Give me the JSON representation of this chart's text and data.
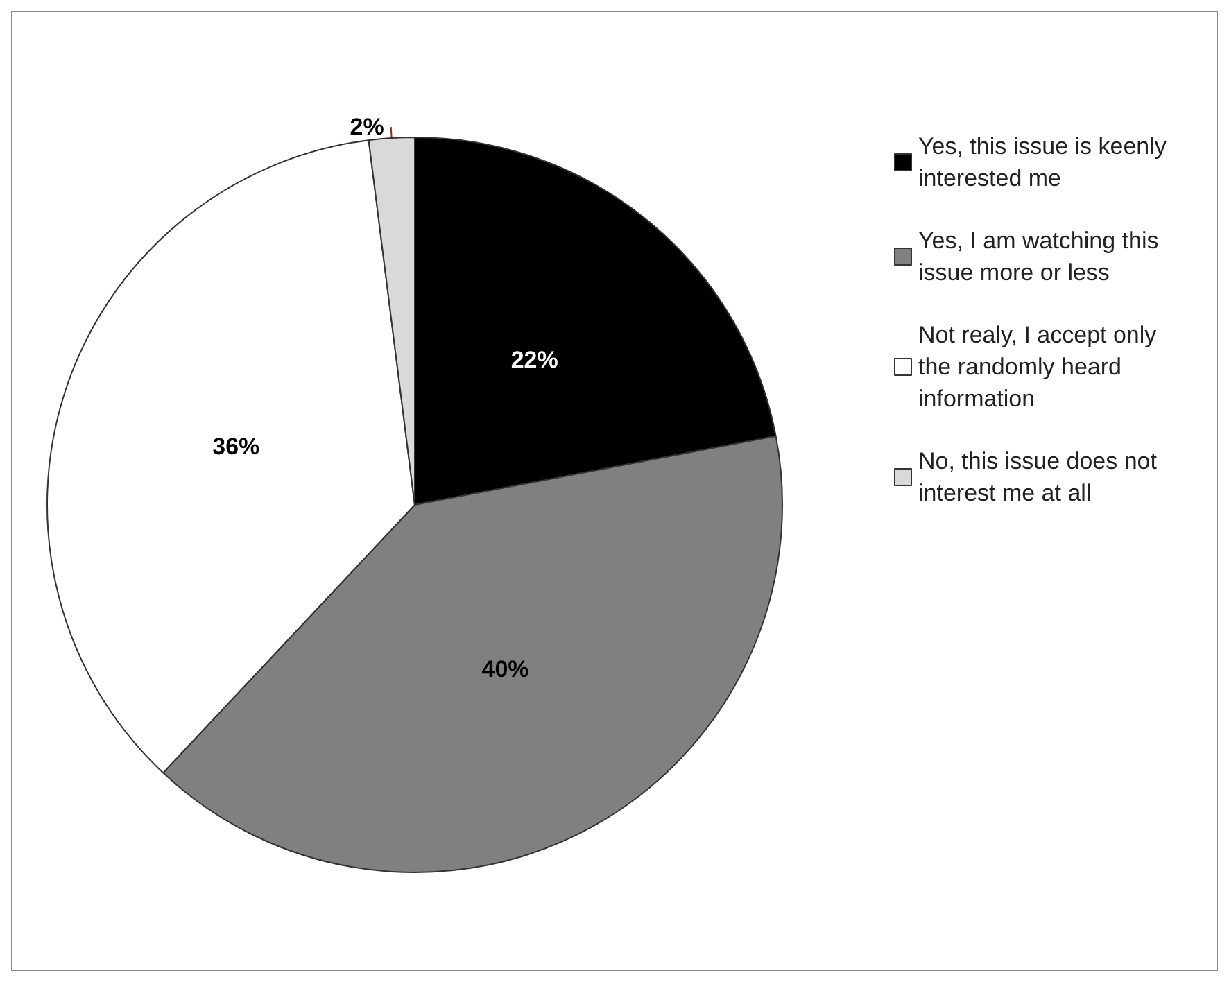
{
  "chart_data": {
    "type": "pie",
    "categories": [
      "Yes, this issue is keenly interested me",
      "Yes, I am watching this issue more or less",
      "Not realy, I accept only the randomly heard information",
      "No, this issue does not interest me at all"
    ],
    "values": [
      22,
      40,
      36,
      2
    ],
    "colors": [
      "#000000",
      "#808080",
      "#ffffff",
      "#d9d9d9"
    ],
    "value_labels": [
      "22%",
      "40%",
      "36%",
      "2%"
    ],
    "legend": "right"
  }
}
